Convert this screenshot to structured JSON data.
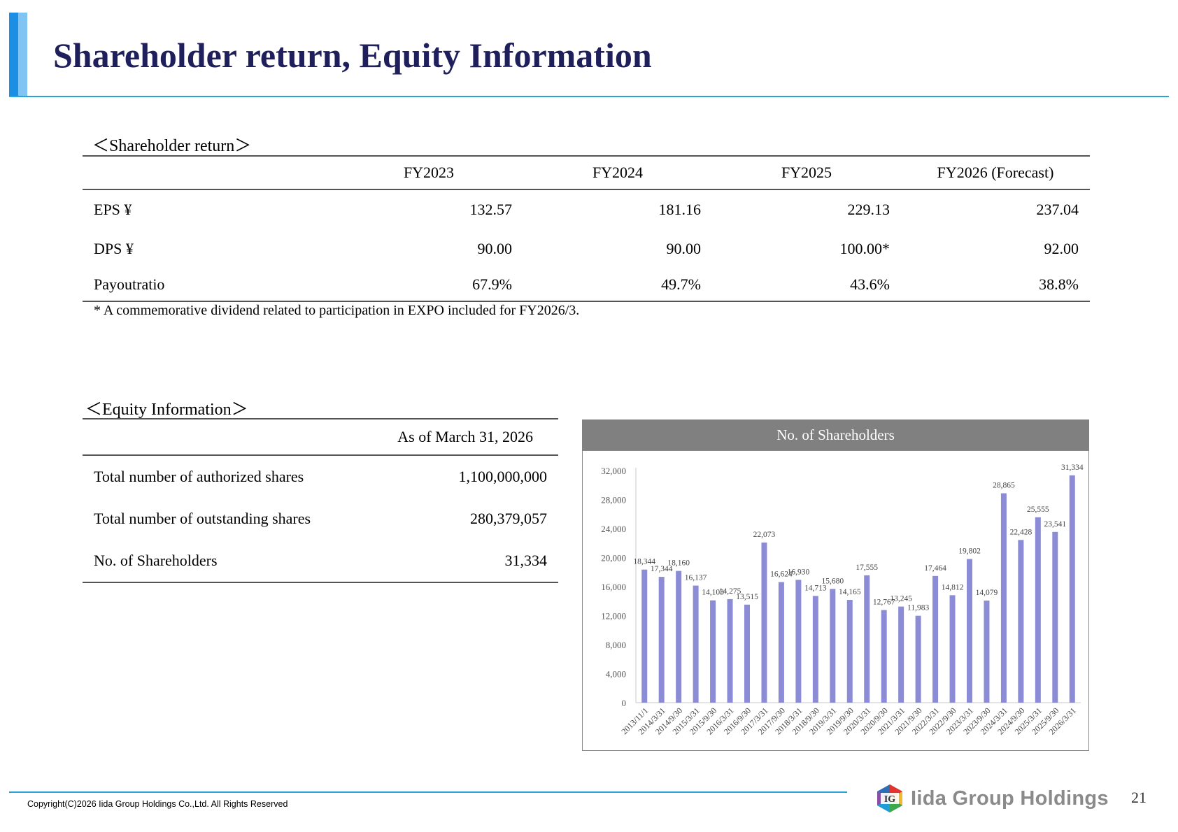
{
  "title": "Shareholder return, Equity Information",
  "shareholder_return": {
    "heading": "＜Shareholder return＞",
    "columns": [
      "",
      "FY2023",
      "FY2024",
      "FY2025",
      "FY2026 (Forecast)"
    ],
    "rows": [
      {
        "label": "EPS ¥",
        "values": [
          "132.57",
          "181.16",
          "229.13",
          "237.04"
        ]
      },
      {
        "label": "DPS ¥",
        "values": [
          "90.00",
          "90.00",
          "100.00*",
          "92.00"
        ]
      },
      {
        "label": "Payoutratio",
        "values": [
          "67.9%",
          "49.7%",
          "43.6%",
          "38.8%"
        ]
      }
    ],
    "note": "* A commemorative dividend related to participation in EXPO included for FY2026/3."
  },
  "equity_information": {
    "heading": "＜Equity Information＞",
    "column": "As of March 31, 2026",
    "rows": [
      {
        "label": "Total number of authorized shares",
        "value": "1,100,000,000"
      },
      {
        "label": "Total number of outstanding shares",
        "value": "280,379,057"
      },
      {
        "label": "No. of Shareholders",
        "value": "31,334"
      }
    ]
  },
  "chart_data": {
    "type": "bar",
    "title": "No. of Shareholders",
    "categories": [
      "2013/11/1",
      "2014/3/31",
      "2014/9/30",
      "2015/3/31",
      "2015/9/30",
      "2016/3/31",
      "2016/9/30",
      "2017/3/31",
      "2017/9/30",
      "2018/3/31",
      "2018/9/30",
      "2019/3/31",
      "2019/9/30",
      "2020/3/31",
      "2020/9/30",
      "2021/3/31",
      "2021/9/30",
      "2022/3/31",
      "2022/9/30",
      "2023/3/31",
      "2023/9/30",
      "2024/3/31",
      "2024/9/30",
      "2025/3/31",
      "2025/9/30",
      "2026/3/31"
    ],
    "values": [
      18344,
      17344,
      18160,
      16137,
      14103,
      14275,
      13515,
      22073,
      16624,
      16930,
      14713,
      15680,
      14165,
      17555,
      12767,
      13245,
      11983,
      17464,
      14812,
      19802,
      14079,
      28865,
      22428,
      25555,
      23541,
      31334
    ],
    "value_labels": [
      "18,344",
      "17,344",
      "18,160",
      "16,137",
      "14,103",
      "14,275",
      "13,515",
      "22,073",
      "16,624",
      "16,930",
      "14,713",
      "15,680",
      "14,165",
      "17,555",
      "12,767",
      "13,245",
      "11,983",
      "17,464",
      "14,812",
      "19,802",
      "14,079",
      "28,865",
      "22,428",
      "25,555",
      "23,541",
      "31,334"
    ],
    "yticks": [
      "0",
      "4,000",
      "8,000",
      "12,000",
      "16,000",
      "20,000",
      "24,000",
      "28,000",
      "32,000"
    ],
    "ylim": [
      0,
      32000
    ],
    "bar_color": "#8c8cd6",
    "grid": false
  },
  "footer": {
    "copyright": "Copyright(C)2026 Iida Group Holdings Co.,Ltd. All Rights Reserved",
    "page_number": "21",
    "logo_text": "Iida Group Holdings",
    "logo_mark": "IG"
  }
}
